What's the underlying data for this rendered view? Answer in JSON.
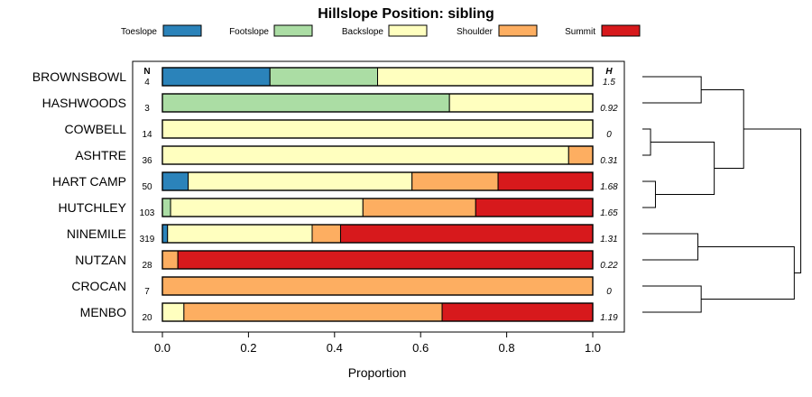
{
  "chart_data": {
    "type": "bar",
    "orientation": "horizontal",
    "stacked": true,
    "title": "Hillslope Position: sibling",
    "xlabel": "Proportion",
    "ylabel": "",
    "xlim": [
      0,
      1
    ],
    "x_ticks": [
      0.0,
      0.2,
      0.4,
      0.6,
      0.8,
      1.0
    ],
    "x_tick_labels": [
      "0.0",
      "0.2",
      "0.4",
      "0.6",
      "0.8",
      "1.0"
    ],
    "legend": {
      "placement": "top",
      "entries": [
        {
          "name": "Toeslope",
          "color": "#2b83ba"
        },
        {
          "name": "Footslope",
          "color": "#abdda4"
        },
        {
          "name": "Backslope",
          "color": "#ffffbf"
        },
        {
          "name": "Shoulder",
          "color": "#fdae61"
        },
        {
          "name": "Summit",
          "color": "#d7191c"
        }
      ]
    },
    "count_header": "N",
    "entropy_header": "H",
    "categories": [
      "BROWNSBOWL",
      "HASHWOODS",
      "COWBELL",
      "ASHTRE",
      "HART CAMP",
      "HUTCHLEY",
      "NINEMILE",
      "NUTZAN",
      "CROCAN",
      "MENBO"
    ],
    "counts": [
      "4",
      "3",
      "14",
      "36",
      "50",
      "103",
      "319",
      "28",
      "7",
      "20"
    ],
    "entropy": [
      "1.5",
      "0.92",
      "0",
      "0.31",
      "1.68",
      "1.65",
      "1.31",
      "0.22",
      "0",
      "1.19"
    ],
    "series": [
      {
        "name": "Toeslope",
        "values": [
          0.25,
          0,
          0,
          0,
          0.06,
          0,
          0.012,
          0,
          0,
          0
        ]
      },
      {
        "name": "Footslope",
        "values": [
          0.25,
          0.667,
          0,
          0,
          0,
          0.019,
          0,
          0,
          0,
          0
        ]
      },
      {
        "name": "Backslope",
        "values": [
          0.5,
          0.333,
          1.0,
          0.944,
          0.52,
          0.447,
          0.336,
          0,
          0,
          0.05
        ]
      },
      {
        "name": "Shoulder",
        "values": [
          0,
          0,
          0,
          0.056,
          0.2,
          0.262,
          0.066,
          0.036,
          1.0,
          0.6
        ]
      },
      {
        "name": "Summit",
        "values": [
          0,
          0,
          0,
          0,
          0.22,
          0.272,
          0.586,
          0.964,
          0,
          0.35
        ]
      }
    ],
    "dendrogram": {
      "leaf_order": [
        "BROWNSBOWL",
        "HASHWOODS",
        "COWBELL",
        "ASHTRE",
        "HART CAMP",
        "HUTCHLEY",
        "NINEMILE",
        "NUTZAN",
        "CROCAN",
        "MENBO"
      ],
      "merges": [
        {
          "id": "m1",
          "left": "COWBELL",
          "right": "ASHTRE",
          "height": 0.05
        },
        {
          "id": "m2",
          "left": "HART CAMP",
          "right": "HUTCHLEY",
          "height": 0.08
        },
        {
          "id": "m3",
          "left": "BROWNSBOWL",
          "right": "HASHWOODS",
          "height": 0.36
        },
        {
          "id": "m4",
          "left": "m1",
          "right": "m2",
          "height": 0.44
        },
        {
          "id": "m5",
          "left": "m3",
          "right": "m4",
          "height": 0.62
        },
        {
          "id": "m6",
          "left": "NINEMILE",
          "right": "NUTZAN",
          "height": 0.34
        },
        {
          "id": "m7",
          "left": "CROCAN",
          "right": "MENBO",
          "height": 0.36
        },
        {
          "id": "m8",
          "left": "m6",
          "right": "m7",
          "height": 0.93
        },
        {
          "id": "m9",
          "left": "m5",
          "right": "m8",
          "height": 0.97
        }
      ]
    }
  }
}
